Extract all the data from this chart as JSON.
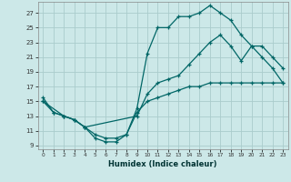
{
  "xlabel": "Humidex (Indice chaleur)",
  "background_color": "#cce8e8",
  "grid_color": "#aacccc",
  "line_color": "#006666",
  "xlim": [
    -0.5,
    23.5
  ],
  "ylim": [
    8.5,
    28.5
  ],
  "xticks": [
    0,
    1,
    2,
    3,
    4,
    5,
    6,
    7,
    8,
    9,
    10,
    11,
    12,
    13,
    14,
    15,
    16,
    17,
    18,
    19,
    20,
    21,
    22,
    23
  ],
  "yticks": [
    9,
    11,
    13,
    15,
    17,
    19,
    21,
    23,
    25,
    27
  ],
  "line1_x": [
    0,
    1,
    2,
    3,
    4,
    5,
    6,
    7,
    8,
    9,
    10,
    11,
    12,
    13,
    14,
    15,
    16,
    17,
    18,
    19,
    20,
    21,
    22,
    23
  ],
  "line1_y": [
    15.5,
    13.5,
    13.0,
    12.5,
    11.5,
    10.0,
    9.5,
    9.5,
    10.5,
    14.0,
    21.5,
    25.0,
    25.0,
    26.5,
    26.5,
    27.0,
    28.0,
    27.0,
    26.0,
    24.0,
    22.5,
    21.0,
    19.5,
    17.5
  ],
  "line2_x": [
    0,
    2,
    3,
    4,
    9,
    10,
    11,
    12,
    13,
    14,
    15,
    16,
    17,
    18,
    19,
    20,
    21,
    22,
    23
  ],
  "line2_y": [
    15.0,
    13.0,
    12.5,
    11.5,
    13.0,
    16.0,
    17.5,
    18.0,
    18.5,
    20.0,
    21.5,
    23.0,
    24.0,
    22.5,
    20.5,
    22.5,
    22.5,
    21.0,
    19.5
  ],
  "line3_x": [
    0,
    1,
    2,
    3,
    4,
    5,
    6,
    7,
    8,
    9,
    10,
    11,
    12,
    13,
    14,
    15,
    16,
    17,
    18,
    19,
    20,
    21,
    22,
    23
  ],
  "line3_y": [
    15.0,
    13.5,
    13.0,
    12.5,
    11.5,
    10.5,
    10.0,
    10.0,
    10.5,
    13.5,
    15.0,
    15.5,
    16.0,
    16.5,
    17.0,
    17.0,
    17.5,
    17.5,
    17.5,
    17.5,
    17.5,
    17.5,
    17.5,
    17.5
  ]
}
